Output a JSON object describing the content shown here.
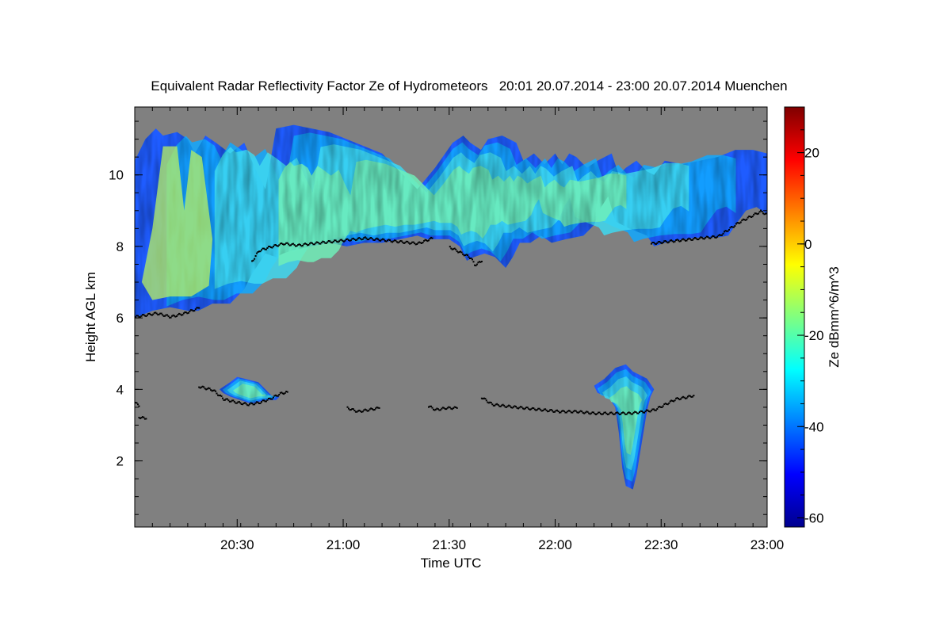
{
  "chart_data": {
    "type": "heatmap",
    "title": "Equivalent Radar Reflectivity Factor Ze of Hydrometeors   20:01 20.07.2014 - 23:00 20.07.2014 Muenchen",
    "xlabel": "Time UTC",
    "ylabel": "Height AGL km",
    "colorbar_label": "Ze dBmm^6/m^3",
    "x_range_minutes": [
      0,
      179
    ],
    "x_ticks": [
      {
        "min": 29,
        "label": "20:30"
      },
      {
        "min": 59,
        "label": "21:00"
      },
      {
        "min": 89,
        "label": "21:30"
      },
      {
        "min": 119,
        "label": "22:00"
      },
      {
        "min": 149,
        "label": "22:30"
      },
      {
        "min": 179,
        "label": "23:00"
      }
    ],
    "ylim": [
      0.15,
      11.9
    ],
    "y_ticks": [
      2,
      4,
      6,
      8,
      10
    ],
    "clim": [
      -62,
      30
    ],
    "colorbar_ticks": [
      20,
      0,
      -20,
      -40,
      -60
    ],
    "background_color": "#808080",
    "colormap": [
      "#00008f",
      "#0000ff",
      "#0080ff",
      "#00ffff",
      "#80ff80",
      "#ffff00",
      "#ff8000",
      "#ff0000",
      "#800000"
    ],
    "echo_regions": [
      {
        "name": "upper cloud deck",
        "outline": [
          [
            0,
            10.4
          ],
          [
            3,
            11.0
          ],
          [
            6,
            11.3
          ],
          [
            8,
            11.1
          ],
          [
            12,
            11.2
          ],
          [
            15,
            11.0
          ],
          [
            17,
            10.6
          ],
          [
            20,
            11.1
          ],
          [
            23,
            10.9
          ],
          [
            27,
            10.6
          ],
          [
            31,
            10.9
          ],
          [
            34,
            10.2
          ],
          [
            37,
            9.6
          ],
          [
            40,
            11.3
          ],
          [
            45,
            11.4
          ],
          [
            50,
            11.3
          ],
          [
            55,
            11.2
          ],
          [
            60,
            11.0
          ],
          [
            65,
            10.8
          ],
          [
            70,
            10.6
          ],
          [
            75,
            10.1
          ],
          [
            80,
            9.6
          ],
          [
            85,
            10.2
          ],
          [
            90,
            10.9
          ],
          [
            93,
            11.1
          ],
          [
            95,
            10.9
          ],
          [
            98,
            10.7
          ],
          [
            100,
            11.0
          ],
          [
            104,
            11.1
          ],
          [
            108,
            10.9
          ],
          [
            110,
            10.4
          ],
          [
            113,
            10.6
          ],
          [
            116,
            10.3
          ],
          [
            119,
            10.6
          ],
          [
            121,
            10.3
          ],
          [
            123,
            10.6
          ],
          [
            125,
            10.5
          ],
          [
            128,
            10.2
          ],
          [
            131,
            10.4
          ],
          [
            135,
            10.6
          ],
          [
            137,
            10.0
          ],
          [
            139,
            10.2
          ],
          [
            142,
            10.4
          ],
          [
            145,
            10.1
          ],
          [
            147,
            10.0
          ],
          [
            150,
            10.4
          ],
          [
            155,
            10.3
          ],
          [
            160,
            10.4
          ],
          [
            165,
            10.5
          ],
          [
            170,
            10.7
          ],
          [
            175,
            10.7
          ],
          [
            179,
            10.6
          ],
          [
            179,
            8.9
          ],
          [
            176,
            9.1
          ],
          [
            173,
            9.0
          ],
          [
            170,
            8.6
          ],
          [
            168,
            8.3
          ],
          [
            165,
            8.25
          ],
          [
            160,
            8.25
          ],
          [
            155,
            8.2
          ],
          [
            150,
            8.1
          ],
          [
            147,
            8.0
          ],
          [
            145,
            8.3
          ],
          [
            140,
            8.5
          ],
          [
            136,
            8.7
          ],
          [
            134,
            9.4
          ],
          [
            132,
            9.1
          ],
          [
            130,
            8.6
          ],
          [
            127,
            8.3
          ],
          [
            122,
            8.2
          ],
          [
            118,
            8.1
          ],
          [
            115,
            8.3
          ],
          [
            112,
            8.1
          ],
          [
            109,
            8.1
          ],
          [
            107,
            7.7
          ],
          [
            105,
            7.4
          ],
          [
            102,
            7.7
          ],
          [
            99,
            7.8
          ],
          [
            96,
            7.7
          ],
          [
            94,
            7.6
          ],
          [
            92,
            8.0
          ],
          [
            89,
            8.2
          ],
          [
            86,
            8.2
          ],
          [
            83,
            8.2
          ],
          [
            80,
            8.3
          ],
          [
            75,
            8.2
          ],
          [
            70,
            8.1
          ],
          [
            65,
            8.1
          ],
          [
            60,
            8.0
          ],
          [
            55,
            8.1
          ],
          [
            50,
            8.0
          ],
          [
            45,
            7.9
          ],
          [
            42,
            7.8
          ],
          [
            40,
            7.7
          ],
          [
            37,
            7.8
          ],
          [
            35,
            7.5
          ],
          [
            33,
            7.2
          ],
          [
            31,
            6.8
          ],
          [
            29,
            6.6
          ],
          [
            27,
            6.4
          ],
          [
            22,
            6.4
          ],
          [
            18,
            6.2
          ],
          [
            15,
            6.2
          ],
          [
            10,
            6.3
          ],
          [
            5,
            6.2
          ],
          [
            0,
            6.0
          ]
        ]
      },
      {
        "name": "mid-level echo 20:25",
        "outline": [
          [
            24,
            4.0
          ],
          [
            27,
            4.2
          ],
          [
            29,
            4.35
          ],
          [
            31,
            4.3
          ],
          [
            35,
            4.2
          ],
          [
            37,
            4.0
          ],
          [
            39,
            3.8
          ],
          [
            41,
            3.8
          ],
          [
            40,
            3.7
          ],
          [
            37,
            3.7
          ],
          [
            33,
            3.6
          ],
          [
            30,
            3.7
          ],
          [
            27,
            3.8
          ],
          [
            25,
            3.9
          ]
        ]
      },
      {
        "name": "virga 22:15",
        "outline": [
          [
            130,
            4.1
          ],
          [
            133,
            4.3
          ],
          [
            136,
            4.6
          ],
          [
            139,
            4.7
          ],
          [
            141,
            4.5
          ],
          [
            143,
            4.4
          ],
          [
            145,
            4.3
          ],
          [
            147,
            4.0
          ],
          [
            146,
            3.8
          ],
          [
            145,
            3.4
          ],
          [
            144,
            2.8
          ],
          [
            143,
            2.2
          ],
          [
            142,
            1.6
          ],
          [
            141,
            1.2
          ],
          [
            139,
            1.3
          ],
          [
            138,
            1.8
          ],
          [
            137,
            2.8
          ],
          [
            136,
            3.5
          ],
          [
            134,
            3.8
          ],
          [
            131,
            3.9
          ]
        ]
      }
    ],
    "cloud_base_segments": [
      [
        [
          0,
          6.05
        ],
        [
          3,
          6.1
        ],
        [
          6,
          6.15
        ],
        [
          10,
          6.05
        ],
        [
          14,
          6.15
        ],
        [
          18,
          6.3
        ]
      ],
      [
        [
          33,
          7.6
        ],
        [
          35,
          7.9
        ],
        [
          38,
          8.0
        ],
        [
          42,
          8.1
        ],
        [
          46,
          8.05
        ],
        [
          50,
          8.1
        ],
        [
          55,
          8.15
        ],
        [
          60,
          8.2
        ],
        [
          65,
          8.25
        ],
        [
          70,
          8.2
        ],
        [
          75,
          8.15
        ],
        [
          80,
          8.1
        ],
        [
          84,
          8.25
        ]
      ],
      [
        [
          89,
          8.0
        ],
        [
          92,
          7.85
        ],
        [
          95,
          7.7
        ],
        [
          96,
          7.5
        ],
        [
          98,
          7.6
        ]
      ],
      [
        [
          146,
          8.1
        ],
        [
          150,
          8.15
        ],
        [
          155,
          8.2
        ],
        [
          160,
          8.25
        ],
        [
          165,
          8.3
        ],
        [
          168,
          8.5
        ],
        [
          171,
          8.7
        ],
        [
          174,
          8.85
        ],
        [
          177,
          9.0
        ],
        [
          179,
          8.9
        ]
      ],
      [
        [
          18,
          4.1
        ],
        [
          22,
          4.0
        ],
        [
          25,
          3.75
        ],
        [
          29,
          3.65
        ],
        [
          32,
          3.6
        ],
        [
          35,
          3.65
        ],
        [
          38,
          3.75
        ],
        [
          41,
          3.9
        ],
        [
          43,
          3.95
        ]
      ],
      [
        [
          0,
          3.65
        ],
        [
          1,
          3.55
        ]
      ],
      [
        [
          1,
          3.25
        ],
        [
          3,
          3.2
        ]
      ],
      [
        [
          60,
          3.5
        ],
        [
          63,
          3.4
        ],
        [
          66,
          3.45
        ],
        [
          69,
          3.5
        ]
      ],
      [
        [
          83,
          3.55
        ],
        [
          85,
          3.45
        ],
        [
          88,
          3.5
        ],
        [
          91,
          3.5
        ]
      ],
      [
        [
          98,
          3.8
        ],
        [
          101,
          3.6
        ],
        [
          105,
          3.55
        ],
        [
          110,
          3.5
        ],
        [
          115,
          3.45
        ],
        [
          120,
          3.4
        ],
        [
          125,
          3.4
        ],
        [
          130,
          3.35
        ],
        [
          135,
          3.35
        ],
        [
          140,
          3.35
        ],
        [
          144,
          3.4
        ],
        [
          147,
          3.45
        ],
        [
          150,
          3.6
        ],
        [
          153,
          3.75
        ],
        [
          156,
          3.8
        ],
        [
          158,
          3.85
        ]
      ]
    ]
  }
}
